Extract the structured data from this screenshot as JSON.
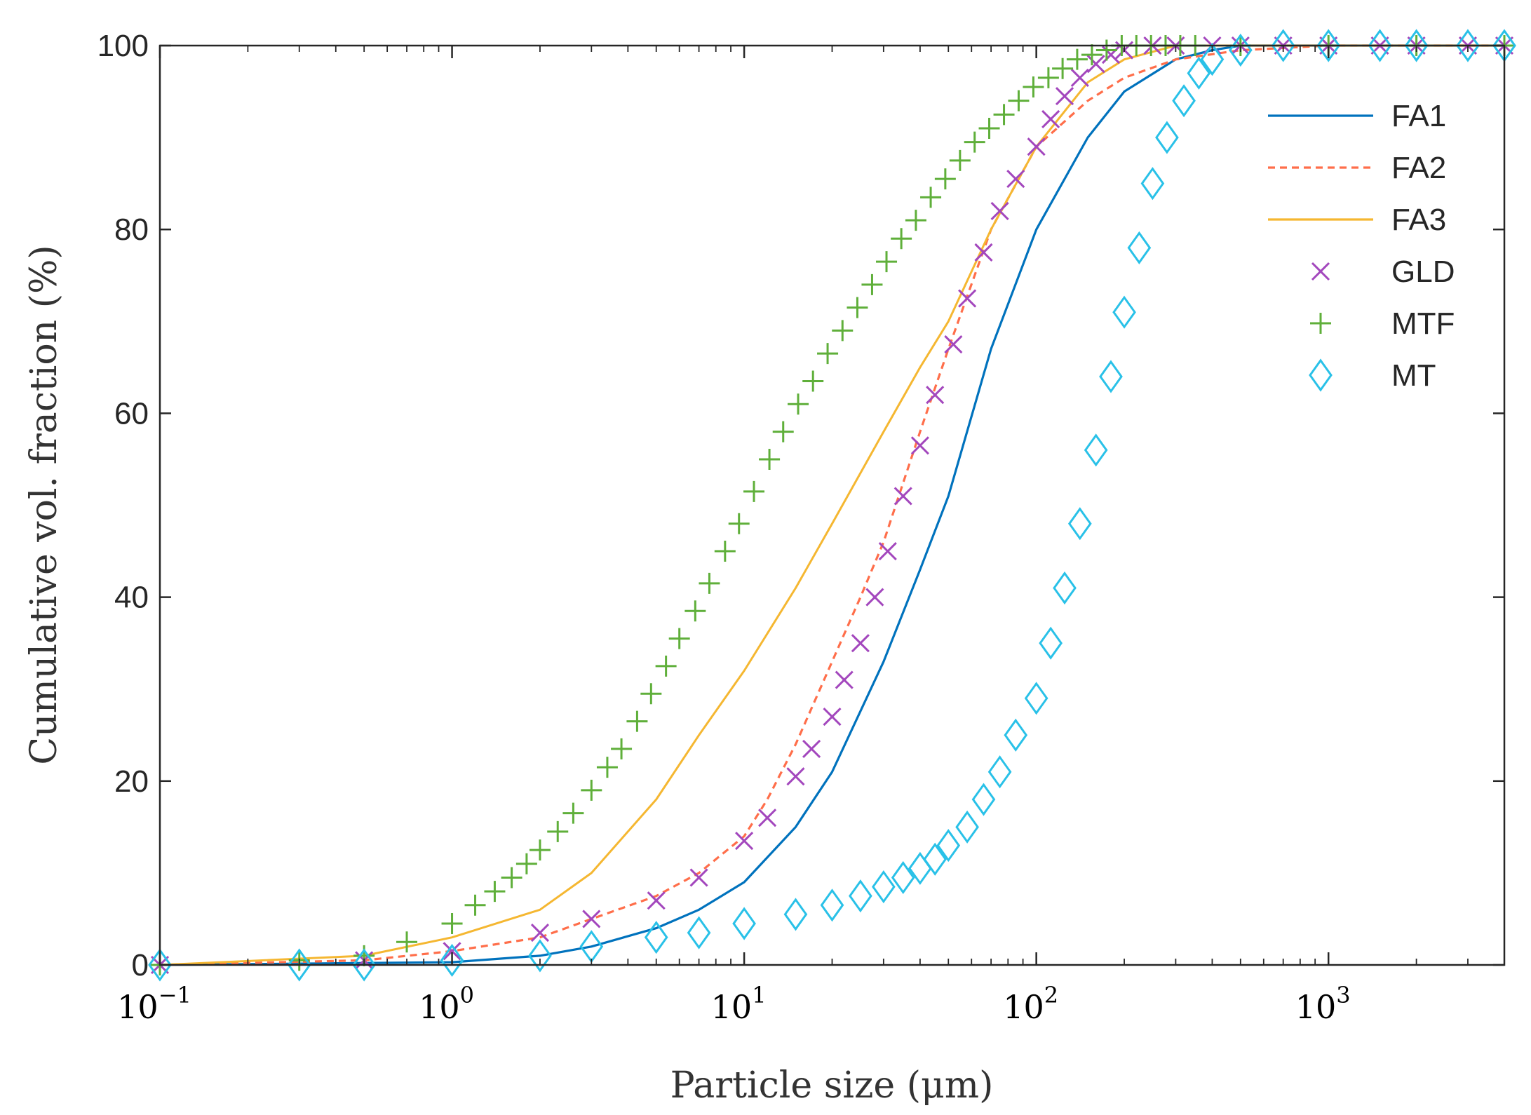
{
  "chart_data": {
    "type": "line",
    "title": "",
    "xlabel": "Particle size (μm)",
    "ylabel": "Cumulative vol. fraction (%)",
    "xscale": "log",
    "xlim": [
      0.1,
      4000
    ],
    "ylim": [
      0,
      100
    ],
    "x_ticks": [
      {
        "base": "10",
        "exp": "−1"
      },
      {
        "base": "10",
        "exp": "0"
      },
      {
        "base": "10",
        "exp": "1"
      },
      {
        "base": "10",
        "exp": "2"
      },
      {
        "base": "10",
        "exp": "3"
      }
    ],
    "y_ticks": [
      "0",
      "20",
      "40",
      "60",
      "80",
      "100"
    ],
    "legend_position": "top-right",
    "series": [
      {
        "name": "FA1",
        "style": "solid line",
        "color": "#0072BD",
        "x": [
          0.1,
          1,
          2,
          3,
          5,
          7,
          10,
          15,
          20,
          30,
          40,
          50,
          70,
          100,
          150,
          200,
          300,
          400,
          500,
          600,
          4000
        ],
        "y": [
          0,
          0.3,
          1,
          2,
          4,
          6,
          9,
          15,
          21,
          33,
          43,
          51,
          67,
          80,
          90,
          95,
          98.5,
          99.5,
          100,
          100,
          100
        ]
      },
      {
        "name": "FA2",
        "style": "dashed line",
        "color": "#FF6E4A",
        "x": [
          0.1,
          0.5,
          1,
          2,
          3,
          5,
          7,
          10,
          12,
          15,
          20,
          25,
          30,
          40,
          50,
          70,
          100,
          150,
          200,
          300,
          500,
          1000,
          4000
        ],
        "y": [
          0,
          0.5,
          1.5,
          3,
          5,
          7.5,
          10,
          14,
          18,
          24,
          33,
          40,
          46,
          58,
          67,
          80,
          89,
          94,
          96.5,
          98.5,
          99.5,
          100,
          100
        ]
      },
      {
        "name": "FA3",
        "style": "solid line",
        "color": "#F5B731",
        "x": [
          0.1,
          0.5,
          1,
          2,
          3,
          5,
          7,
          10,
          15,
          20,
          30,
          40,
          50,
          70,
          100,
          150,
          200,
          300,
          1000,
          4000
        ],
        "y": [
          0,
          1,
          3,
          6,
          10,
          18,
          25,
          32,
          41,
          48,
          58,
          65,
          70,
          80,
          89,
          96,
          98.5,
          100,
          100,
          100
        ]
      },
      {
        "name": "GLD",
        "style": "x markers",
        "color": "#A347BD",
        "x": [
          0.1,
          0.5,
          1,
          2,
          3,
          5,
          7,
          10,
          12,
          15,
          17,
          20,
          22,
          25,
          28,
          31,
          35,
          40,
          45,
          52,
          58,
          66,
          75,
          85,
          100,
          112,
          125,
          141,
          160,
          180,
          200,
          250,
          300,
          400,
          500,
          700,
          1000,
          1500,
          2000,
          3000,
          4000
        ],
        "y": [
          0,
          0.5,
          1.5,
          3.5,
          5,
          7,
          9.5,
          13.5,
          16,
          20.5,
          23.5,
          27,
          31,
          35,
          40,
          45,
          51,
          56.5,
          62,
          67.5,
          72.5,
          77.5,
          82,
          85.5,
          89,
          92,
          94.5,
          96.5,
          98,
          99,
          99.5,
          100,
          100,
          100,
          100,
          100,
          100,
          100,
          100,
          100,
          100
        ]
      },
      {
        "name": "MTF",
        "style": "+ markers",
        "color": "#5FAF3A",
        "x": [
          0.1,
          0.3,
          0.5,
          0.7,
          1,
          1.2,
          1.4,
          1.6,
          1.8,
          2,
          2.3,
          2.6,
          3,
          3.4,
          3.8,
          4.3,
          4.8,
          5.4,
          6,
          6.8,
          7.6,
          8.6,
          9.6,
          10.8,
          12.2,
          13.6,
          15.3,
          17.2,
          19.3,
          21.7,
          24.4,
          27.4,
          30.7,
          34.5,
          38.7,
          43.5,
          48.8,
          54.8,
          61.5,
          69,
          77.5,
          87,
          97.7,
          110,
          123,
          138,
          155,
          174,
          196,
          220,
          247,
          277,
          311,
          350,
          500,
          1000,
          2000,
          4000
        ],
        "y": [
          0,
          0.5,
          1,
          2.5,
          4.5,
          6.5,
          8,
          9.5,
          11,
          12.5,
          14.5,
          16.5,
          19,
          21.5,
          23.5,
          26.5,
          29.5,
          32.5,
          35.5,
          38.5,
          41.5,
          45,
          48,
          51.5,
          55,
          58,
          61,
          63.5,
          66.5,
          69,
          71.5,
          74,
          76.5,
          79,
          81,
          83.5,
          85.5,
          87.5,
          89.5,
          91,
          92.5,
          94,
          95.5,
          96.5,
          97.5,
          98.5,
          99,
          99.5,
          100,
          100,
          100,
          100,
          100,
          100,
          100,
          100,
          100,
          100
        ]
      },
      {
        "name": "MT",
        "style": "diamond markers",
        "color": "#29C1E8",
        "x": [
          0.1,
          0.3,
          0.5,
          1,
          2,
          3,
          5,
          7,
          10,
          15,
          20,
          25,
          30,
          35,
          40,
          45,
          50,
          58,
          66,
          75,
          85,
          100,
          112,
          125,
          141,
          160,
          180,
          200,
          225,
          250,
          280,
          320,
          360,
          400,
          500,
          700,
          1000,
          1500,
          2000,
          3000,
          4000
        ],
        "y": [
          0,
          0,
          0,
          0.5,
          1,
          2,
          3,
          3.5,
          4.5,
          5.5,
          6.5,
          7.5,
          8.5,
          9.5,
          10.5,
          11.5,
          13,
          15,
          18,
          21,
          25,
          29,
          35,
          41,
          48,
          56,
          64,
          71,
          78,
          85,
          90,
          94,
          97,
          98.5,
          99.5,
          100,
          100,
          100,
          100,
          100,
          100
        ]
      }
    ]
  }
}
